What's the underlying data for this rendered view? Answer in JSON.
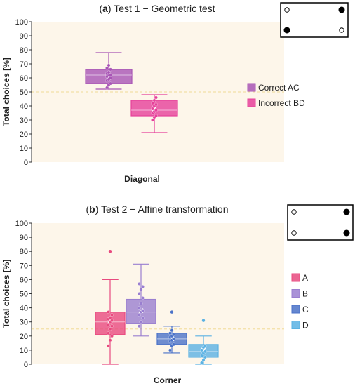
{
  "chart_data": [
    {
      "type": "box",
      "panel_letter": "a",
      "title": "Test 1 − Geometric test",
      "ylabel": "Total choices [%]",
      "xlabel": "Diagonal",
      "ylim": [
        0,
        100
      ],
      "yticks": [
        0,
        10,
        20,
        30,
        40,
        50,
        60,
        70,
        80,
        90,
        100
      ],
      "chance_line": 50,
      "legend_position": "right",
      "inset_icon": {
        "filled": [
          "top-right",
          "bottom-left"
        ],
        "empty": [
          "top-left",
          "bottom-right"
        ]
      },
      "series": [
        {
          "name": "Correct AC",
          "color": "#a855b5",
          "min": 52,
          "q1": 56,
          "median": 62,
          "mean": 61,
          "q3": 66,
          "max": 78,
          "points": [
            53,
            55,
            56,
            58,
            59,
            60,
            61,
            62,
            62,
            63,
            64,
            66,
            67,
            69
          ]
        },
        {
          "name": "Incorrect BD",
          "color": "#e6409a",
          "min": 21,
          "q1": 33,
          "median": 37,
          "mean": 38,
          "q3": 44,
          "max": 48,
          "points": [
            30,
            32,
            33,
            35,
            36,
            37,
            38,
            40,
            41,
            42,
            44,
            46
          ]
        }
      ]
    },
    {
      "type": "box",
      "panel_letter": "b",
      "title": "Test 2 − Affine transformation",
      "ylabel": "Total choices [%]",
      "xlabel": "Corner",
      "ylim": [
        0,
        100
      ],
      "yticks": [
        0,
        10,
        20,
        30,
        40,
        50,
        60,
        70,
        80,
        90,
        100
      ],
      "chance_line": 25,
      "legend_position": "right",
      "inset_icon": {
        "filled": [
          "top-right",
          "bottom-right"
        ],
        "empty": [
          "top-left",
          "bottom-left"
        ]
      },
      "series": [
        {
          "name": "A",
          "color": "#e84a7f",
          "min": 0,
          "q1": 21,
          "median": 30,
          "mean": 31,
          "q3": 37,
          "max": 60,
          "outliers": [
            80
          ],
          "points": [
            13,
            17,
            20,
            22,
            25,
            27,
            28,
            30,
            31,
            32,
            33,
            35,
            37
          ]
        },
        {
          "name": "B",
          "color": "#9a7fd0",
          "min": 20,
          "q1": 29,
          "median": 37,
          "mean": 38,
          "q3": 46,
          "max": 71,
          "points": [
            27,
            30,
            33,
            35,
            37,
            38,
            40,
            43,
            47,
            50,
            53,
            55,
            57
          ]
        },
        {
          "name": "C",
          "color": "#4a72c8",
          "min": 8,
          "q1": 14,
          "median": 18,
          "mean": 18,
          "q3": 22,
          "max": 27,
          "outliers": [
            37
          ],
          "points": [
            10,
            13,
            14,
            16,
            17,
            18,
            19,
            20,
            21,
            22,
            24
          ]
        },
        {
          "name": "D",
          "color": "#5bb2e3",
          "min": 0,
          "q1": 5,
          "median": 9,
          "mean": 10,
          "q3": 14,
          "max": 20,
          "outliers": [
            31
          ],
          "points": [
            1,
            3,
            5,
            6,
            8,
            9,
            10,
            12,
            13
          ]
        }
      ]
    }
  ]
}
